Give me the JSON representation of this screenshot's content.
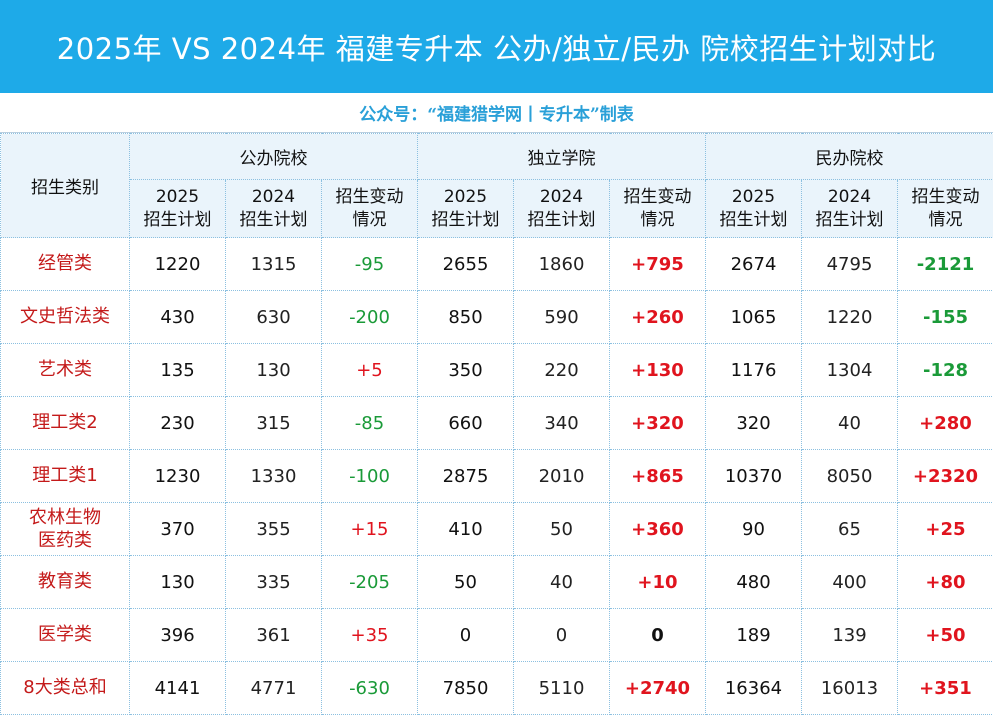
{
  "title": "2025年 VS 2024年 福建专升本 公办/独立/民办 院校招生计划对比",
  "subtitle": "公众号：“福建猎学网丨专升本”制表",
  "header": {
    "category_label": "招生类别",
    "groups": [
      "公办院校",
      "独立学院",
      "民办院校"
    ],
    "sub": {
      "col_2025_year": "2025",
      "col_2025_label": "招生计划",
      "col_2024_year": "2024",
      "col_2024_label": "招生计划",
      "change_line1": "招生变动",
      "change_line2": "情况"
    }
  },
  "rows": [
    {
      "label": "经管类",
      "cells": [
        {
          "v2025": "1220",
          "v2024": "1315",
          "change": "-95",
          "dir": "neg"
        },
        {
          "v2025": "2655",
          "v2024": "1860",
          "change": "+795",
          "dir": "pos"
        },
        {
          "v2025": "2674",
          "v2024": "4795",
          "change": "-2121",
          "dir": "neg"
        }
      ]
    },
    {
      "label": "文史哲法类",
      "cells": [
        {
          "v2025": "430",
          "v2024": "630",
          "change": "-200",
          "dir": "neg"
        },
        {
          "v2025": "850",
          "v2024": "590",
          "change": "+260",
          "dir": "pos"
        },
        {
          "v2025": "1065",
          "v2024": "1220",
          "change": "-155",
          "dir": "neg"
        }
      ]
    },
    {
      "label": "艺术类",
      "cells": [
        {
          "v2025": "135",
          "v2024": "130",
          "change": "+5",
          "dir": "pos"
        },
        {
          "v2025": "350",
          "v2024": "220",
          "change": "+130",
          "dir": "pos"
        },
        {
          "v2025": "1176",
          "v2024": "1304",
          "change": "-128",
          "dir": "neg"
        }
      ]
    },
    {
      "label": "理工类2",
      "cells": [
        {
          "v2025": "230",
          "v2024": "315",
          "change": "-85",
          "dir": "neg"
        },
        {
          "v2025": "660",
          "v2024": "340",
          "change": "+320",
          "dir": "pos"
        },
        {
          "v2025": "320",
          "v2024": "40",
          "change": "+280",
          "dir": "pos"
        }
      ]
    },
    {
      "label": "理工类1",
      "cells": [
        {
          "v2025": "1230",
          "v2024": "1330",
          "change": "-100",
          "dir": "neg"
        },
        {
          "v2025": "2875",
          "v2024": "2010",
          "change": "+865",
          "dir": "pos"
        },
        {
          "v2025": "10370",
          "v2024": "8050",
          "change": "+2320",
          "dir": "pos"
        }
      ]
    },
    {
      "label": "农林生物\n医药类",
      "cells": [
        {
          "v2025": "370",
          "v2024": "355",
          "change": "+15",
          "dir": "pos"
        },
        {
          "v2025": "410",
          "v2024": "50",
          "change": "+360",
          "dir": "pos"
        },
        {
          "v2025": "90",
          "v2024": "65",
          "change": "+25",
          "dir": "pos"
        }
      ]
    },
    {
      "label": "教育类",
      "cells": [
        {
          "v2025": "130",
          "v2024": "335",
          "change": "-205",
          "dir": "neg"
        },
        {
          "v2025": "50",
          "v2024": "40",
          "change": "+10",
          "dir": "pos"
        },
        {
          "v2025": "480",
          "v2024": "400",
          "change": "+80",
          "dir": "pos"
        }
      ]
    },
    {
      "label": "医学类",
      "cells": [
        {
          "v2025": "396",
          "v2024": "361",
          "change": "+35",
          "dir": "pos"
        },
        {
          "v2025": "0",
          "v2024": "0",
          "change": "0",
          "dir": "zero"
        },
        {
          "v2025": "189",
          "v2024": "139",
          "change": "+50",
          "dir": "pos"
        }
      ]
    },
    {
      "label": "8大类总和",
      "cells": [
        {
          "v2025": "4141",
          "v2024": "4771",
          "change": "-630",
          "dir": "neg"
        },
        {
          "v2025": "7850",
          "v2024": "5110",
          "change": "+2740",
          "dir": "pos"
        },
        {
          "v2025": "16364",
          "v2024": "16013",
          "change": "+351",
          "dir": "pos"
        }
      ]
    }
  ],
  "colors": {
    "title_bg": "#1eaae8",
    "subtitle": "#2aa0d8",
    "header_bg": "#eaf4fb",
    "label_red": "#c41a1a",
    "increase_red": "#e0141e",
    "decrease_green": "#1a9a38"
  }
}
